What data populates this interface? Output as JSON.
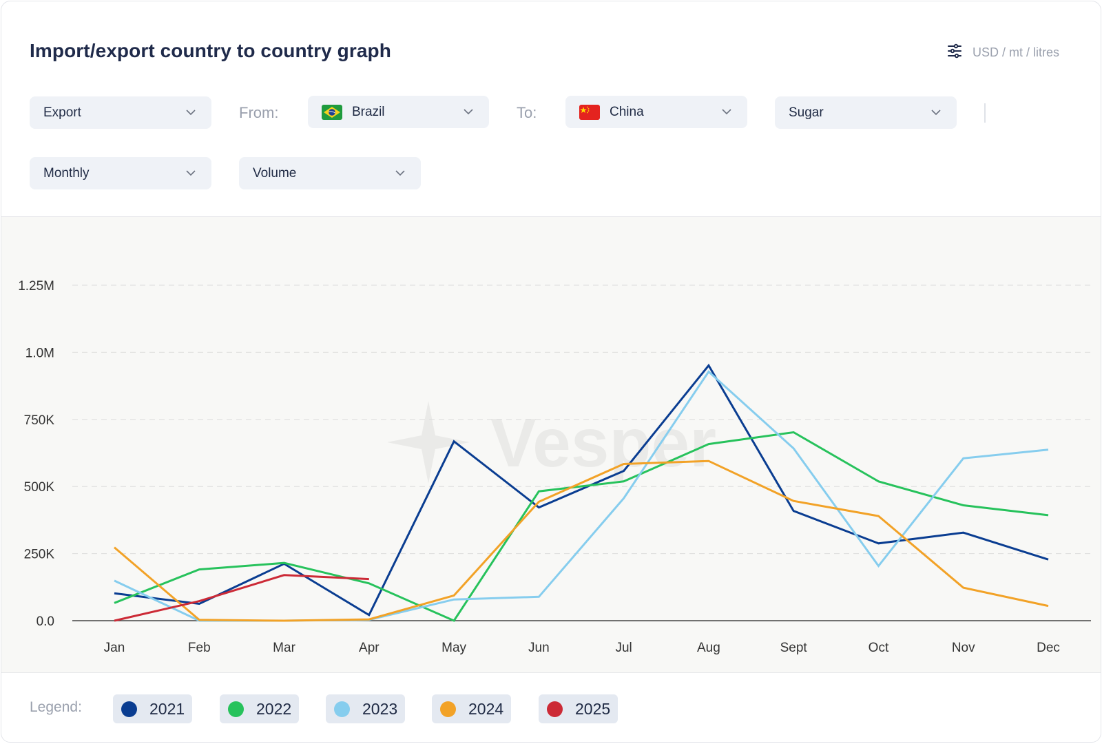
{
  "header": {
    "title": "Import/export country to country graph",
    "units_label": "USD / mt / litres",
    "units_icon": "sliders-icon"
  },
  "filters": {
    "flow": {
      "value": "Export"
    },
    "from_label": "From:",
    "from": {
      "value": "Brazil",
      "flag": "brazil-flag"
    },
    "to_label": "To:",
    "to": {
      "value": "China",
      "flag": "china-flag"
    },
    "commodity": {
      "value": "Sugar"
    },
    "period": {
      "value": "Monthly"
    },
    "measure": {
      "value": "Volume"
    }
  },
  "watermark": "Vesper",
  "legend": {
    "label": "Legend:",
    "items": [
      {
        "label": "2021",
        "color": "#0a3d91"
      },
      {
        "label": "2022",
        "color": "#27c25c"
      },
      {
        "label": "2023",
        "color": "#86cdee"
      },
      {
        "label": "2024",
        "color": "#f2a227"
      },
      {
        "label": "2025",
        "color": "#cc2a36"
      }
    ]
  },
  "chart_data": {
    "type": "line",
    "title": "Import/export country to country graph",
    "xlabel": "",
    "ylabel": "",
    "categories": [
      "Jan",
      "Feb",
      "Mar",
      "Apr",
      "May",
      "Jun",
      "Jul",
      "Aug",
      "Sept",
      "Oct",
      "Nov",
      "Dec"
    ],
    "ylim": [
      0,
      1250000
    ],
    "yticks": [
      0,
      250000,
      500000,
      750000,
      1000000,
      1250000
    ],
    "ytick_labels": [
      "0.0",
      "250K",
      "500K",
      "750K",
      "1.0M",
      "1.25M"
    ],
    "grid": true,
    "legend_position": "bottom",
    "series": [
      {
        "name": "2021",
        "color": "#0a3d91",
        "values": [
          102000,
          63000,
          212000,
          21000,
          668000,
          422000,
          558000,
          951000,
          409000,
          288000,
          328000,
          228000
        ]
      },
      {
        "name": "2022",
        "color": "#27c25c",
        "values": [
          66000,
          191000,
          215000,
          139000,
          0,
          482000,
          519000,
          658000,
          702000,
          519000,
          430000,
          393000
        ]
      },
      {
        "name": "2023",
        "color": "#86cdee",
        "values": [
          149000,
          0,
          0,
          3000,
          79000,
          89000,
          456000,
          928000,
          642000,
          204000,
          605000,
          637000
        ]
      },
      {
        "name": "2024",
        "color": "#f2a227",
        "values": [
          273000,
          3000,
          0,
          5000,
          94000,
          443000,
          584000,
          595000,
          446000,
          390000,
          123000,
          55000
        ]
      },
      {
        "name": "2025",
        "color": "#cc2a36",
        "values": [
          0,
          73000,
          170000,
          155000
        ]
      }
    ]
  }
}
